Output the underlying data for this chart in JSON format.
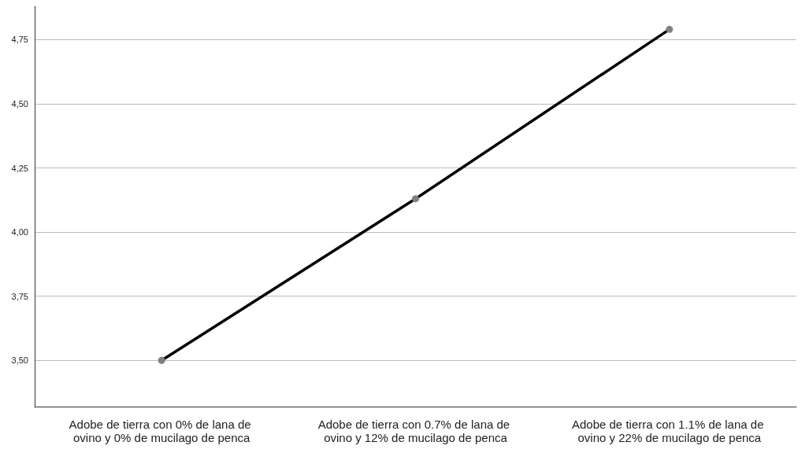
{
  "chart_data": {
    "type": "line",
    "categories": [
      "Adobe de tierra con 0% de lana de ovino y 0% de mucilago de penca",
      "Adobe de tierra con 0.7% de lana de ovino y 12% de mucilago de penca",
      "Adobe de tierra con 1.1% de lana de ovino y 22% de mucilago de penca"
    ],
    "series": [
      {
        "color": "#000000",
        "values": [
          3.5,
          4.13,
          4.79
        ]
      }
    ],
    "ylim": [
      3.32,
      4.88
    ],
    "yticks": [
      {
        "value": 3.5,
        "label": "3,50"
      },
      {
        "value": 3.75,
        "label": "3,75"
      },
      {
        "value": 4.0,
        "label": "4,00"
      },
      {
        "value": 4.25,
        "label": "4,25"
      },
      {
        "value": 4.5,
        "label": "4,50"
      },
      {
        "value": 4.75,
        "label": "4,75"
      }
    ],
    "grid": "y",
    "marker": "circle",
    "line_style": "solid"
  }
}
